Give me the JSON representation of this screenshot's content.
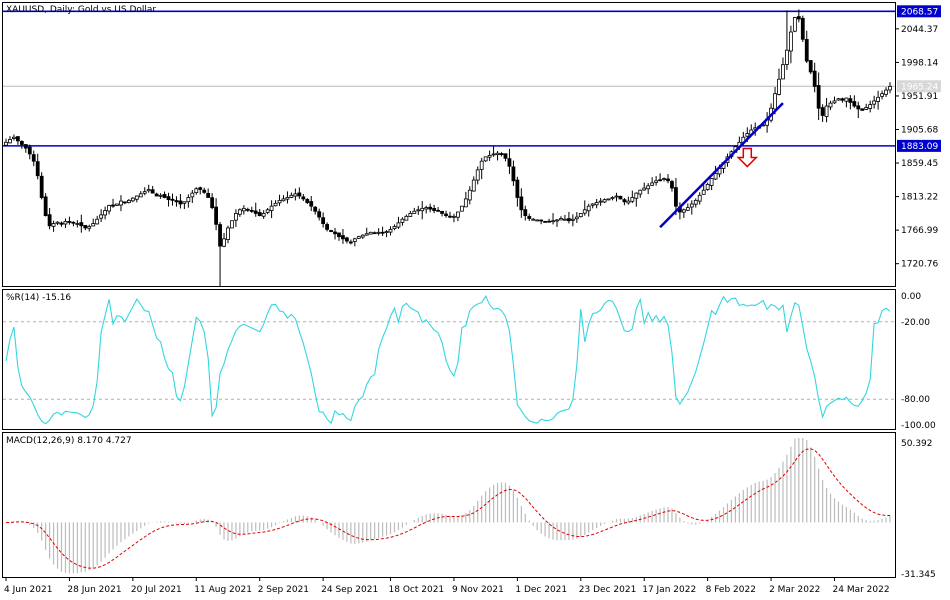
{
  "header": {
    "symbol": "XAUUSD",
    "timeframe": "Daily",
    "description": "Gold vs US Dollar",
    "title": "XAUUSD, Daily:  Gold vs US Dollar"
  },
  "colors": {
    "background": "#ffffff",
    "candle": "#000000",
    "level_line": "#0000cc",
    "trend_line": "#0000cc",
    "current_price_line": "#b8b8b8",
    "arrow": "#dd0000",
    "wpr_line": "#33d6e0",
    "macd_hist": "#bcbcbc",
    "macd_signal": "#dd0000",
    "level_dash": "#b0b0b0"
  },
  "chart_data": [
    {
      "type": "candlestick",
      "name": "price",
      "yticks": [
        2044.37,
        1998.14,
        1951.91,
        1905.68,
        1859.45,
        1813.22,
        1766.99,
        1720.76
      ],
      "ylim": [
        1690,
        2080
      ],
      "levels": [
        {
          "label": "2068.57",
          "value": 2068.57
        },
        {
          "label": "1883.09",
          "value": 1883.09
        }
      ],
      "current_price": {
        "label": "1965.24",
        "value": 1965.24
      },
      "trendline": {
        "from": {
          "index": 165,
          "price": 1771
        },
        "to": {
          "index": 196,
          "price": 1942
        }
      },
      "arrow": {
        "index": 187,
        "price": 1867,
        "direction": "down"
      },
      "closes": [
        1888,
        1892,
        1895,
        1890,
        1885,
        1880,
        1872,
        1862,
        1842,
        1812,
        1787,
        1773,
        1776,
        1778,
        1775,
        1779,
        1778,
        1777,
        1776,
        1773,
        1770,
        1772,
        1776,
        1782,
        1788,
        1794,
        1801,
        1800,
        1803,
        1807,
        1805,
        1808,
        1811,
        1814,
        1817,
        1820,
        1823,
        1818,
        1814,
        1815,
        1812,
        1809,
        1808,
        1806,
        1803,
        1806,
        1812,
        1818,
        1824,
        1823,
        1819,
        1812,
        1798,
        1775,
        1745,
        1755,
        1770,
        1780,
        1790,
        1795,
        1797,
        1795,
        1793,
        1790,
        1787,
        1790,
        1795,
        1800,
        1804,
        1808,
        1810,
        1812,
        1815,
        1817,
        1814,
        1810,
        1805,
        1800,
        1793,
        1785,
        1776,
        1768,
        1765,
        1762,
        1758,
        1755,
        1752,
        1750,
        1755,
        1758,
        1760,
        1762,
        1764,
        1763,
        1764,
        1763,
        1765,
        1768,
        1772,
        1777,
        1782,
        1786,
        1790,
        1793,
        1795,
        1797,
        1798,
        1796,
        1794,
        1793,
        1790,
        1787,
        1785,
        1786,
        1792,
        1800,
        1810,
        1822,
        1836,
        1850,
        1862,
        1868,
        1870,
        1872,
        1873,
        1871,
        1866,
        1855,
        1835,
        1812,
        1795,
        1787,
        1783,
        1782,
        1781,
        1780,
        1779,
        1779,
        1780,
        1781,
        1783,
        1782,
        1780,
        1782,
        1785,
        1790,
        1795,
        1800,
        1803,
        1805,
        1807,
        1809,
        1810,
        1812,
        1814,
        1810,
        1806,
        1807,
        1812,
        1818,
        1822,
        1825,
        1828,
        1832,
        1835,
        1836,
        1838,
        1835,
        1825,
        1800,
        1792,
        1795,
        1798,
        1803,
        1808,
        1815,
        1822,
        1830,
        1838,
        1845,
        1852,
        1860,
        1868,
        1875,
        1882,
        1888,
        1895,
        1900,
        1905,
        1908,
        1910,
        1912,
        1920,
        1935,
        1955,
        1975,
        1995,
        2015,
        2040,
        2060,
        2058,
        2030,
        2000,
        1985,
        1965,
        1935,
        1925,
        1938,
        1942,
        1945,
        1948,
        1946,
        1949,
        1943,
        1938,
        1934,
        1932,
        1936,
        1940,
        1945,
        1950,
        1955,
        1960,
        1965
      ]
    },
    {
      "type": "line",
      "name": "wpr",
      "title": "%R(14) -15.16",
      "yticks": [
        0,
        -20,
        -80,
        -100
      ],
      "ytick_labels": [
        "0.00",
        "-20.00",
        "-80.00",
        "-100.00"
      ],
      "levels": [
        -20,
        -80
      ],
      "ylim": [
        -100,
        0
      ]
    },
    {
      "type": "histogram+line",
      "name": "macd",
      "title": "MACD(12,26,9) 8.170 4.727",
      "yticks": [
        50.392,
        -31.345
      ],
      "ytick_labels": [
        "50.392",
        "-31.345"
      ],
      "ylim": [
        -31.345,
        50.392
      ],
      "signal_period": 9
    }
  ],
  "xaxis": {
    "labels": [
      {
        "text": "4 Jun 2021",
        "index": 0
      },
      {
        "text": "28 Jun 2021",
        "index": 16
      },
      {
        "text": "20 Jul 2021",
        "index": 32
      },
      {
        "text": "11 Aug 2021",
        "index": 48
      },
      {
        "text": "2 Sep 2021",
        "index": 64
      },
      {
        "text": "24 Sep 2021",
        "index": 80
      },
      {
        "text": "18 Oct 2021",
        "index": 97
      },
      {
        "text": "9 Nov 2021",
        "index": 113
      },
      {
        "text": "1 Dec 2021",
        "index": 129
      },
      {
        "text": "23 Dec 2021",
        "index": 145
      },
      {
        "text": "17 Jan 2022",
        "index": 161
      },
      {
        "text": "8 Feb 2022",
        "index": 177
      },
      {
        "text": "2 Mar 2022",
        "index": 193
      },
      {
        "text": "24 Mar 2022",
        "index": 209
      }
    ]
  }
}
